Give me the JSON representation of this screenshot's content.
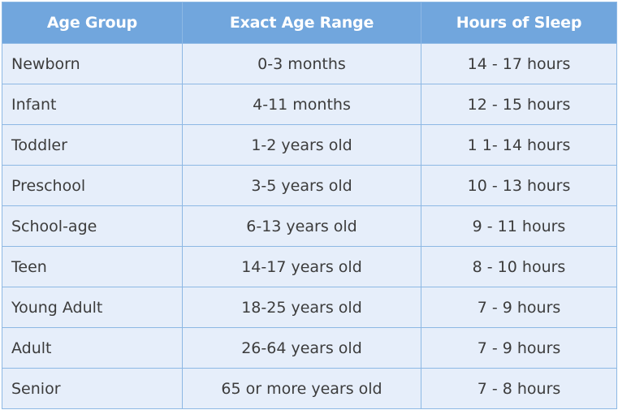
{
  "table": {
    "headers": [
      "Age Group",
      "Exact Age Range",
      "Hours of Sleep"
    ],
    "rows": [
      {
        "group": "Newborn",
        "range": "0-3 months",
        "hours": "14 - 17 hours"
      },
      {
        "group": "Infant",
        "range": "4-11 months",
        "hours": "12 - 15 hours"
      },
      {
        "group": "Toddler",
        "range": "1-2 years old",
        "hours": "1 1- 14 hours"
      },
      {
        "group": "Preschool",
        "range": "3-5 years old",
        "hours": "10 - 13 hours"
      },
      {
        "group": "School-age",
        "range": "6-13 years old",
        "hours": "9 - 11 hours"
      },
      {
        "group": "Teen",
        "range": "14-17 years old",
        "hours": "8 - 10 hours"
      },
      {
        "group": "Young Adult",
        "range": "18-25 years old",
        "hours": "7 - 9 hours"
      },
      {
        "group": "Adult",
        "range": "26-64 years old",
        "hours": "7 - 9 hours"
      },
      {
        "group": "Senior",
        "range": "65 or more years old",
        "hours": "7 - 8 hours"
      }
    ]
  },
  "colors": {
    "header_bg": "#71a6dd",
    "header_text": "#ffffff",
    "row_bg": "#e6eefa",
    "border": "#8db8e4",
    "cell_text": "#3c3c3c"
  }
}
